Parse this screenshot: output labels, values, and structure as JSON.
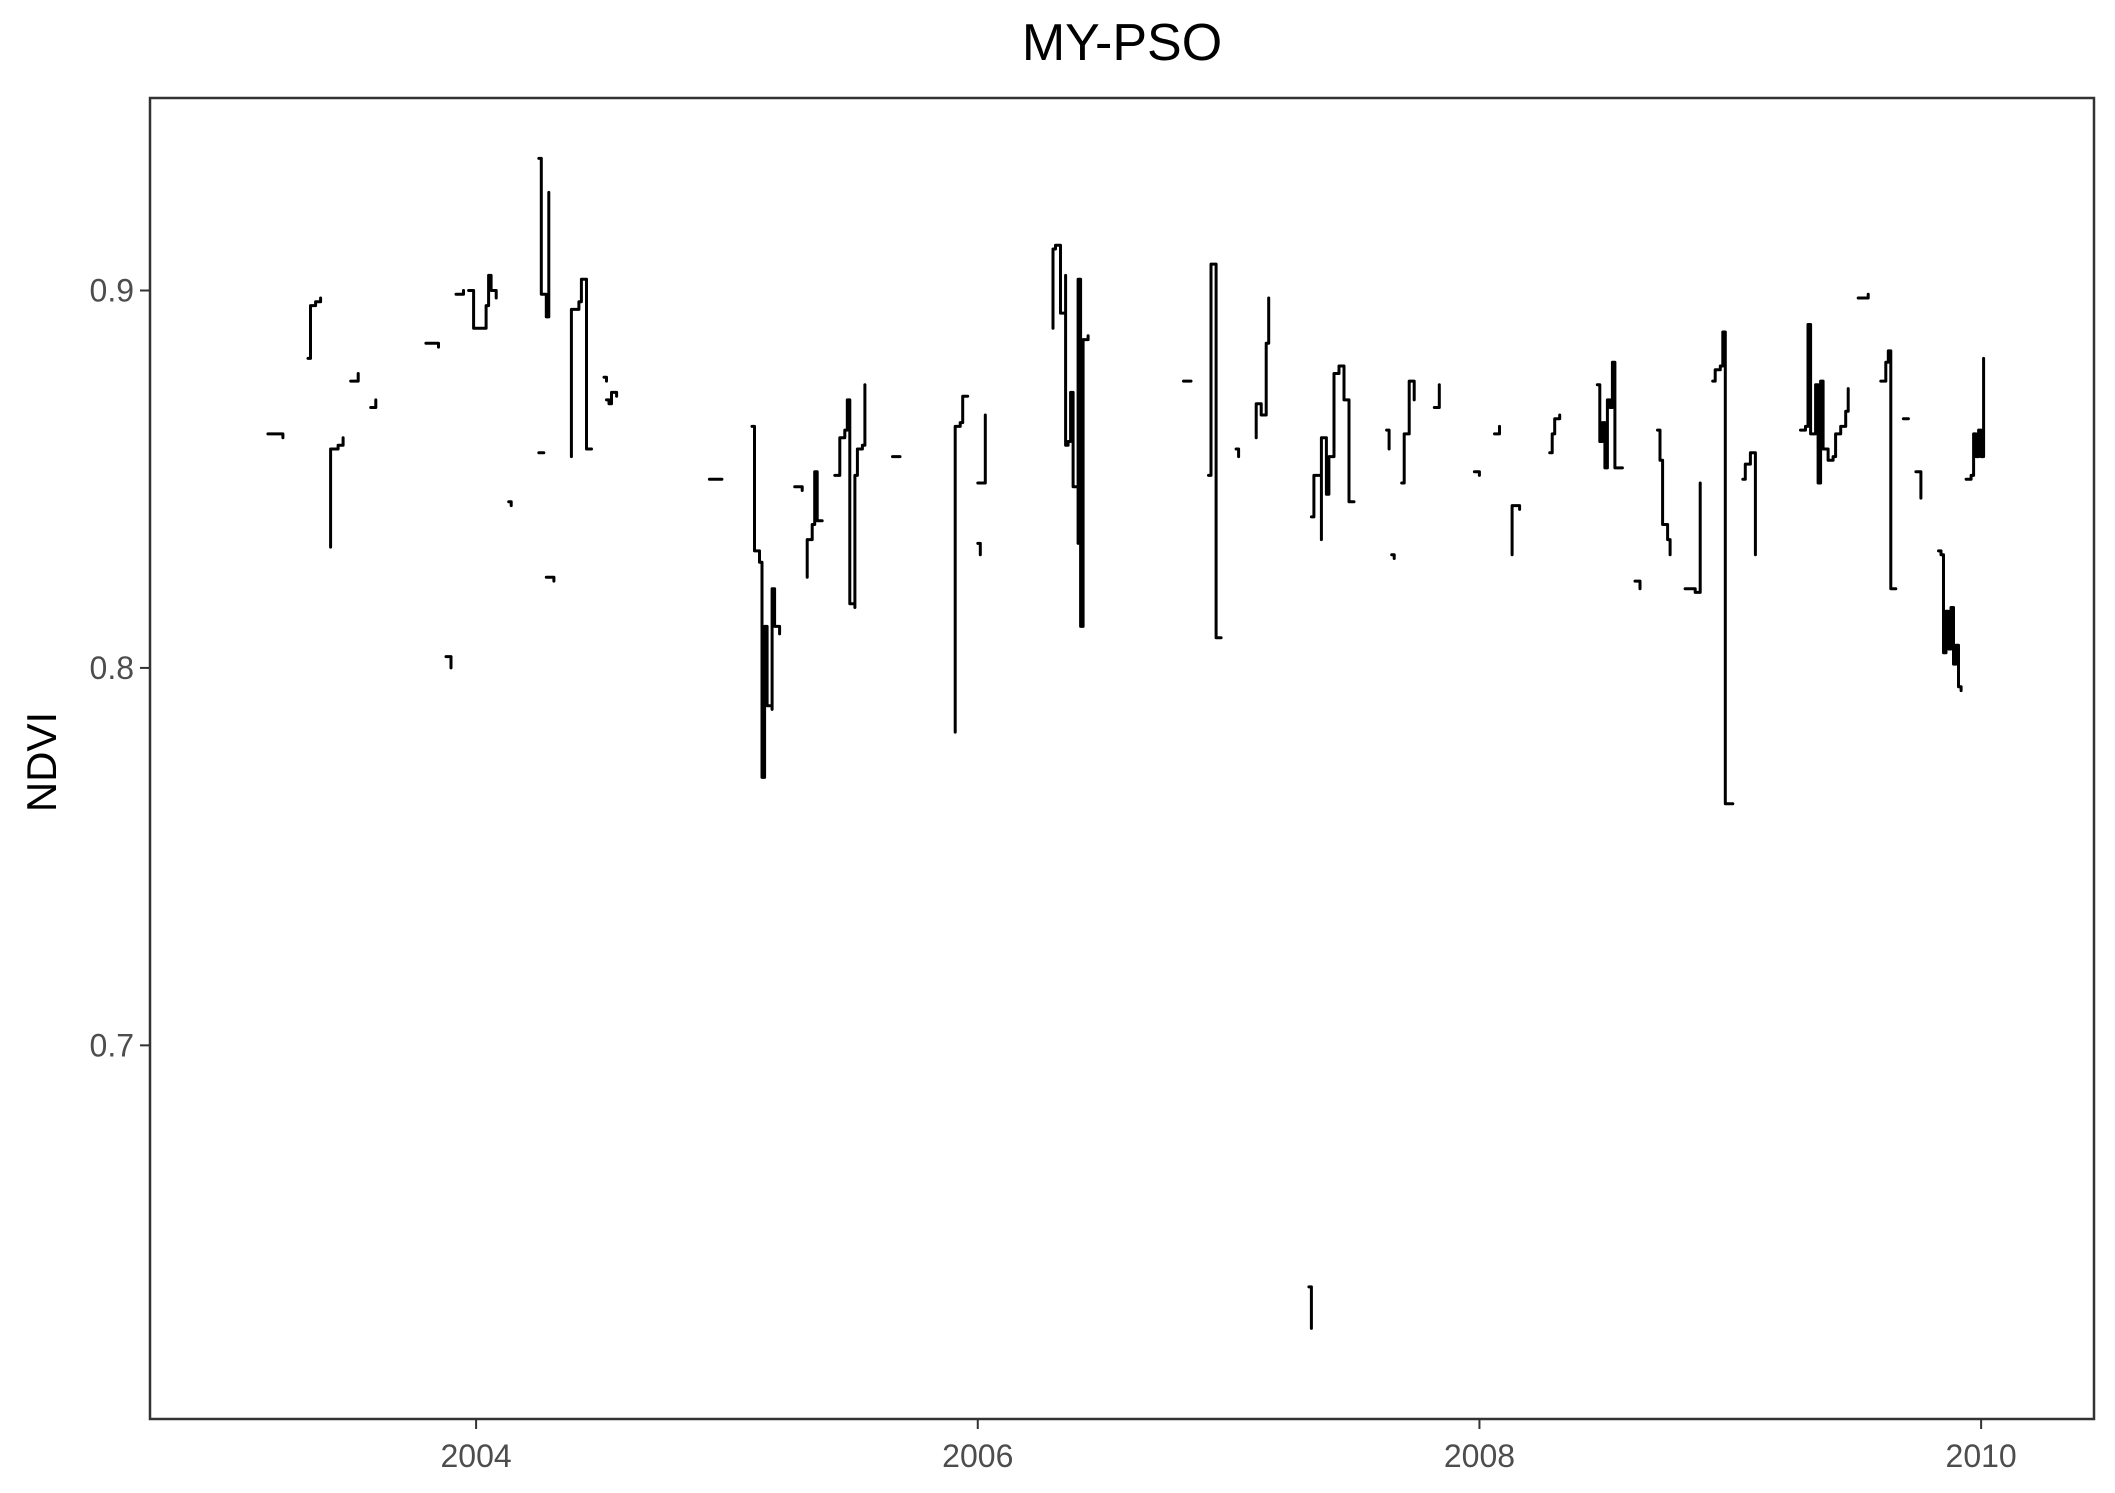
{
  "chart_data": {
    "type": "line",
    "title": "MY-PSO",
    "xlabel": "",
    "ylabel": "NDVI",
    "xlim": [
      2002.7,
      2010.45
    ],
    "ylim": [
      0.601,
      0.951
    ],
    "x_ticks": [
      2004,
      2006,
      2008,
      2010
    ],
    "y_ticks": [
      0.7,
      0.8,
      0.9
    ],
    "x_tick_labels": [
      "2004",
      "2006",
      "2008",
      "2010"
    ],
    "y_tick_labels": [
      "0.7",
      "0.8",
      "0.9"
    ],
    "grid": false,
    "legend": "none",
    "series": [
      {
        "segments": [
          [
            [
              2003.17,
              0.862
            ],
            [
              2003.2,
              0.862
            ],
            [
              2003.23,
              0.861
            ]
          ],
          [
            [
              2003.33,
              0.882
            ],
            [
              2003.34,
              0.896
            ],
            [
              2003.36,
              0.897
            ],
            [
              2003.38,
              0.898
            ]
          ],
          [
            [
              2003.42,
              0.832
            ],
            [
              2003.42,
              0.858
            ],
            [
              2003.45,
              0.859
            ],
            [
              2003.47,
              0.861
            ]
          ],
          [
            [
              2003.5,
              0.876
            ],
            [
              2003.53,
              0.878
            ]
          ],
          [
            [
              2003.58,
              0.869
            ],
            [
              2003.6,
              0.871
            ]
          ],
          [
            [
              2003.8,
              0.886
            ],
            [
              2003.85,
              0.885
            ]
          ],
          [
            [
              2003.88,
              0.803
            ],
            [
              2003.9,
              0.8
            ]
          ],
          [
            [
              2003.92,
              0.899
            ],
            [
              2003.95,
              0.9
            ]
          ],
          [
            [
              2003.97,
              0.9
            ],
            [
              2003.99,
              0.897
            ],
            [
              2003.99,
              0.89
            ],
            [
              2004.03,
              0.89
            ],
            [
              2004.04,
              0.896
            ],
            [
              2004.05,
              0.904
            ],
            [
              2004.06,
              0.9
            ],
            [
              2004.08,
              0.898
            ]
          ],
          [
            [
              2004.13,
              0.844
            ],
            [
              2004.14,
              0.843
            ]
          ],
          [
            [
              2004.25,
              0.857
            ],
            [
              2004.27,
              0.857
            ]
          ],
          [
            [
              2004.28,
              0.824
            ],
            [
              2004.31,
              0.823
            ]
          ],
          [
            [
              2004.25,
              0.935
            ],
            [
              2004.26,
              0.934
            ],
            [
              2004.26,
              0.899
            ],
            [
              2004.28,
              0.895
            ],
            [
              2004.28,
              0.893
            ],
            [
              2004.29,
              0.926
            ],
            [
              2004.29,
              0.893
            ]
          ],
          [
            [
              2004.38,
              0.856
            ],
            [
              2004.38,
              0.895
            ],
            [
              2004.41,
              0.895
            ],
            [
              2004.41,
              0.897
            ],
            [
              2004.42,
              0.9
            ],
            [
              2004.42,
              0.903
            ],
            [
              2004.44,
              0.903
            ],
            [
              2004.44,
              0.858
            ],
            [
              2004.46,
              0.858
            ]
          ],
          [
            [
              2004.51,
              0.877
            ],
            [
              2004.52,
              0.876
            ]
          ],
          [
            [
              2004.52,
              0.871
            ],
            [
              2004.53,
              0.87
            ],
            [
              2004.54,
              0.873
            ],
            [
              2004.56,
              0.872
            ]
          ],
          [
            [
              2004.93,
              0.85
            ],
            [
              2004.98,
              0.85
            ]
          ],
          [
            [
              2005.1,
              0.864
            ],
            [
              2005.11,
              0.831
            ],
            [
              2005.13,
              0.828
            ],
            [
              2005.14,
              0.826
            ],
            [
              2005.14,
              0.771
            ],
            [
              2005.15,
              0.771
            ],
            [
              2005.15,
              0.811
            ],
            [
              2005.16,
              0.79
            ],
            [
              2005.18,
              0.789
            ],
            [
              2005.18,
              0.821
            ],
            [
              2005.19,
              0.811
            ],
            [
              2005.21,
              0.809
            ]
          ],
          [
            [
              2005.27,
              0.848
            ],
            [
              2005.3,
              0.847
            ]
          ],
          [
            [
              2005.32,
              0.824
            ],
            [
              2005.32,
              0.834
            ],
            [
              2005.34,
              0.838
            ],
            [
              2005.35,
              0.852
            ],
            [
              2005.36,
              0.839
            ],
            [
              2005.38,
              0.839
            ]
          ],
          [
            [
              2005.43,
              0.851
            ],
            [
              2005.45,
              0.861
            ],
            [
              2005.47,
              0.863
            ],
            [
              2005.48,
              0.871
            ],
            [
              2005.49,
              0.817
            ],
            [
              2005.51,
              0.816
            ],
            [
              2005.51,
              0.851
            ],
            [
              2005.52,
              0.858
            ],
            [
              2005.54,
              0.859
            ],
            [
              2005.55,
              0.875
            ]
          ],
          [
            [
              2005.66,
              0.856
            ],
            [
              2005.69,
              0.856
            ]
          ],
          [
            [
              2005.91,
              0.783
            ],
            [
              2005.91,
              0.864
            ],
            [
              2005.93,
              0.865
            ],
            [
              2005.94,
              0.872
            ],
            [
              2005.96,
              0.872
            ]
          ],
          [
            [
              2006.0,
              0.849
            ],
            [
              2006.03,
              0.849
            ],
            [
              2006.03,
              0.867
            ]
          ],
          [
            [
              2006.0,
              0.833
            ],
            [
              2006.01,
              0.83
            ]
          ],
          [
            [
              2006.3,
              0.89
            ],
            [
              2006.3,
              0.911
            ],
            [
              2006.31,
              0.912
            ],
            [
              2006.33,
              0.909
            ],
            [
              2006.33,
              0.894
            ],
            [
              2006.35,
              0.904
            ],
            [
              2006.35,
              0.859
            ],
            [
              2006.36,
              0.86
            ],
            [
              2006.37,
              0.873
            ],
            [
              2006.38,
              0.848
            ],
            [
              2006.4,
              0.833
            ],
            [
              2006.4,
              0.903
            ],
            [
              2006.41,
              0.811
            ],
            [
              2006.42,
              0.887
            ],
            [
              2006.44,
              0.888
            ]
          ],
          [
            [
              2006.82,
              0.876
            ],
            [
              2006.85,
              0.876
            ]
          ],
          [
            [
              2006.92,
              0.851
            ],
            [
              2006.93,
              0.907
            ],
            [
              2006.95,
              0.903
            ],
            [
              2006.95,
              0.808
            ],
            [
              2006.97,
              0.808
            ]
          ],
          [
            [
              2007.03,
              0.858
            ],
            [
              2007.04,
              0.856
            ]
          ],
          [
            [
              2007.11,
              0.861
            ],
            [
              2007.11,
              0.87
            ],
            [
              2007.13,
              0.867
            ],
            [
              2007.15,
              0.886
            ],
            [
              2007.16,
              0.898
            ]
          ],
          [
            [
              2007.32,
              0.636
            ],
            [
              2007.33,
              0.625
            ]
          ],
          [
            [
              2007.33,
              0.84
            ],
            [
              2007.34,
              0.851
            ],
            [
              2007.36,
              0.851
            ],
            [
              2007.37,
              0.834
            ],
            [
              2007.37,
              0.861
            ],
            [
              2007.39,
              0.846
            ],
            [
              2007.4,
              0.856
            ],
            [
              2007.42,
              0.866
            ],
            [
              2007.42,
              0.878
            ],
            [
              2007.44,
              0.88
            ],
            [
              2007.46,
              0.871
            ],
            [
              2007.48,
              0.857
            ],
            [
              2007.48,
              0.844
            ],
            [
              2007.5,
              0.844
            ]
          ],
          [
            [
              2007.63,
              0.863
            ],
            [
              2007.64,
              0.858
            ]
          ],
          [
            [
              2007.65,
              0.83
            ],
            [
              2007.66,
              0.829
            ]
          ],
          [
            [
              2007.69,
              0.849
            ],
            [
              2007.7,
              0.862
            ],
            [
              2007.72,
              0.876
            ],
            [
              2007.74,
              0.875
            ],
            [
              2007.74,
              0.871
            ]
          ],
          [
            [
              2007.82,
              0.869
            ],
            [
              2007.84,
              0.875
            ]
          ],
          [
            [
              2007.98,
              0.852
            ],
            [
              2008.0,
              0.851
            ]
          ],
          [
            [
              2008.06,
              0.862
            ],
            [
              2008.08,
              0.864
            ]
          ],
          [
            [
              2008.13,
              0.83
            ],
            [
              2008.13,
              0.843
            ],
            [
              2008.16,
              0.842
            ]
          ],
          [
            [
              2008.28,
              0.857
            ],
            [
              2008.29,
              0.862
            ],
            [
              2008.3,
              0.866
            ],
            [
              2008.32,
              0.867
            ]
          ],
          [
            [
              2008.47,
              0.875
            ],
            [
              2008.48,
              0.86
            ],
            [
              2008.49,
              0.865
            ],
            [
              2008.5,
              0.853
            ],
            [
              2008.51,
              0.871
            ],
            [
              2008.52,
              0.869
            ],
            [
              2008.53,
              0.881
            ],
            [
              2008.54,
              0.853
            ],
            [
              2008.57,
              0.853
            ]
          ],
          [
            [
              2008.62,
              0.823
            ],
            [
              2008.64,
              0.821
            ]
          ],
          [
            [
              2008.71,
              0.863
            ],
            [
              2008.72,
              0.855
            ],
            [
              2008.73,
              0.838
            ],
            [
              2008.75,
              0.834
            ],
            [
              2008.76,
              0.83
            ]
          ],
          [
            [
              2008.82,
              0.821
            ],
            [
              2008.86,
              0.82
            ],
            [
              2008.88,
              0.849
            ]
          ],
          [
            [
              2008.93,
              0.876
            ],
            [
              2008.94,
              0.879
            ],
            [
              2008.96,
              0.88
            ],
            [
              2008.97,
              0.889
            ],
            [
              2008.98,
              0.889
            ],
            [
              2008.98,
              0.764
            ],
            [
              2009.01,
              0.764
            ]
          ],
          [
            [
              2009.05,
              0.85
            ],
            [
              2009.06,
              0.854
            ],
            [
              2009.08,
              0.857
            ],
            [
              2009.1,
              0.856
            ],
            [
              2009.1,
              0.83
            ]
          ],
          [
            [
              2009.28,
              0.863
            ],
            [
              2009.3,
              0.864
            ],
            [
              2009.31,
              0.891
            ],
            [
              2009.32,
              0.862
            ],
            [
              2009.34,
              0.875
            ],
            [
              2009.35,
              0.849
            ],
            [
              2009.36,
              0.876
            ],
            [
              2009.37,
              0.858
            ],
            [
              2009.39,
              0.855
            ],
            [
              2009.41,
              0.856
            ],
            [
              2009.42,
              0.862
            ],
            [
              2009.44,
              0.864
            ],
            [
              2009.46,
              0.868
            ],
            [
              2009.47,
              0.874
            ]
          ],
          [
            [
              2009.51,
              0.898
            ],
            [
              2009.55,
              0.899
            ]
          ],
          [
            [
              2009.6,
              0.876
            ],
            [
              2009.62,
              0.881
            ],
            [
              2009.63,
              0.884
            ],
            [
              2009.64,
              0.821
            ],
            [
              2009.66,
              0.821
            ]
          ],
          [
            [
              2009.69,
              0.866
            ],
            [
              2009.71,
              0.866
            ]
          ],
          [
            [
              2009.74,
              0.852
            ],
            [
              2009.76,
              0.845
            ]
          ],
          [
            [
              2009.83,
              0.831
            ],
            [
              2009.84,
              0.83
            ],
            [
              2009.85,
              0.804
            ],
            [
              2009.86,
              0.815
            ],
            [
              2009.87,
              0.805
            ],
            [
              2009.88,
              0.816
            ],
            [
              2009.89,
              0.801
            ],
            [
              2009.9,
              0.806
            ],
            [
              2009.91,
              0.795
            ],
            [
              2009.92,
              0.794
            ]
          ],
          [
            [
              2009.94,
              0.85
            ],
            [
              2009.96,
              0.851
            ],
            [
              2009.97,
              0.862
            ],
            [
              2009.98,
              0.856
            ],
            [
              2009.99,
              0.863
            ],
            [
              2010.0,
              0.856
            ],
            [
              2010.01,
              0.882
            ]
          ]
        ]
      }
    ]
  }
}
